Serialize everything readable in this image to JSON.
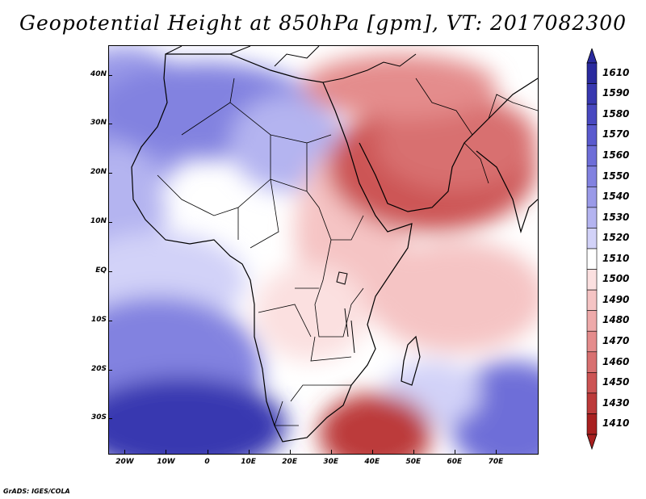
{
  "title": "Geopotential Height at 850hPa [gpm], VT: 2017082300",
  "credit": "GrADS: IGES/COLA",
  "map": {
    "lon_range": [
      -24,
      80
    ],
    "lat_range": [
      -37,
      46
    ],
    "lat_labels": [
      {
        "text": "40N",
        "lat": 40
      },
      {
        "text": "30N",
        "lat": 30
      },
      {
        "text": "20N",
        "lat": 20
      },
      {
        "text": "10N",
        "lat": 10
      },
      {
        "text": "EQ",
        "lat": 0
      },
      {
        "text": "10S",
        "lat": -10
      },
      {
        "text": "20S",
        "lat": -20
      },
      {
        "text": "30S",
        "lat": -30
      }
    ],
    "lon_labels": [
      {
        "text": "20W",
        "lon": -20
      },
      {
        "text": "10W",
        "lon": -10
      },
      {
        "text": "0",
        "lon": 0
      },
      {
        "text": "10E",
        "lon": 10
      },
      {
        "text": "20E",
        "lon": 20
      },
      {
        "text": "30E",
        "lon": 30
      },
      {
        "text": "40E",
        "lon": 40
      },
      {
        "text": "50E",
        "lon": 50
      },
      {
        "text": "60E",
        "lon": 60
      },
      {
        "text": "70E",
        "lon": 70
      }
    ]
  },
  "colorbar": {
    "levels": [
      "1610",
      "1590",
      "1580",
      "1570",
      "1560",
      "1550",
      "1540",
      "1530",
      "1520",
      "1510",
      "1500",
      "1490",
      "1480",
      "1470",
      "1460",
      "1450",
      "1430",
      "1410"
    ],
    "colors": [
      "#2a2a9e",
      "#3838b0",
      "#4848c0",
      "#5a5ace",
      "#6e6ed8",
      "#8282e0",
      "#9a9ae8",
      "#b4b4f0",
      "#d2d2f8",
      "#ffffff",
      "#fbe0e0",
      "#f5c4c4",
      "#eeaaaa",
      "#e48c8c",
      "#d87070",
      "#cc5454",
      "#bc3a3a",
      "#a82020"
    ]
  }
}
